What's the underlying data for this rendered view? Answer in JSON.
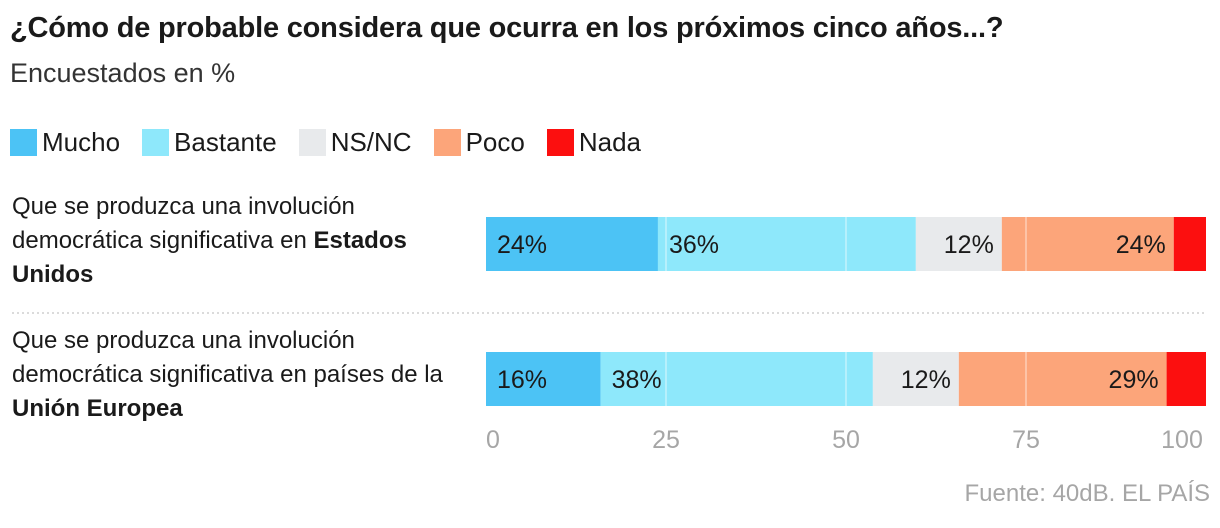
{
  "title": "¿Cómo de probable considera que ocurra en los próximos cinco años...?",
  "subtitle": "Encuestados en %",
  "source": "Fuente: 40dB. EL PAÍS",
  "colors": {
    "mucho": "#4cc3f5",
    "bastante": "#8ee8fb",
    "nsnc": "#e8eaec",
    "poco": "#fca57a",
    "nada": "#fc0f0f"
  },
  "rows": [
    {
      "label_pre": "Que se produzca una involución democrática significativa en",
      "label_bold": "Estados Unidos",
      "label_post": ""
    },
    {
      "label_pre": "Que se produzca una involución democrática significativa en países de la",
      "label_bold": "Unión Europea",
      "label_post": ""
    }
  ],
  "chart_data": {
    "type": "bar",
    "orientation": "horizontal-stacked",
    "title": "¿Cómo de probable considera que ocurra en los próximos cinco años...?",
    "subtitle": "Encuestados en %",
    "categories": [
      "Que se produzca una involución democrática significativa en Estados Unidos",
      "Que se produzca una involución democrática significativa en países de la Unión Europea"
    ],
    "series": [
      {
        "name": "Mucho",
        "key": "mucho",
        "values": [
          24,
          16
        ],
        "labels": [
          "24%",
          "16%"
        ],
        "label_align": "start"
      },
      {
        "name": "Bastante",
        "key": "bastante",
        "values": [
          36,
          38
        ],
        "labels": [
          "36%",
          "38%"
        ],
        "label_align": "start"
      },
      {
        "name": "NS/NC",
        "key": "nsnc",
        "values": [
          12,
          12
        ],
        "labels": [
          "12%",
          "12%"
        ],
        "label_align": "end"
      },
      {
        "name": "Poco",
        "key": "poco",
        "values": [
          24,
          29
        ],
        "labels": [
          "24%",
          "29%"
        ],
        "label_align": "end"
      },
      {
        "name": "Nada",
        "key": "nada",
        "values": [
          4.5,
          5.5
        ],
        "labels": [
          "",
          ""
        ],
        "label_align": "none"
      }
    ],
    "xlim": [
      0,
      100
    ],
    "xticks": [
      "0",
      "25",
      "50",
      "75",
      "100"
    ],
    "xtick_values": [
      0,
      25,
      50,
      75,
      100
    ],
    "grid": true,
    "legend": "top-left"
  }
}
